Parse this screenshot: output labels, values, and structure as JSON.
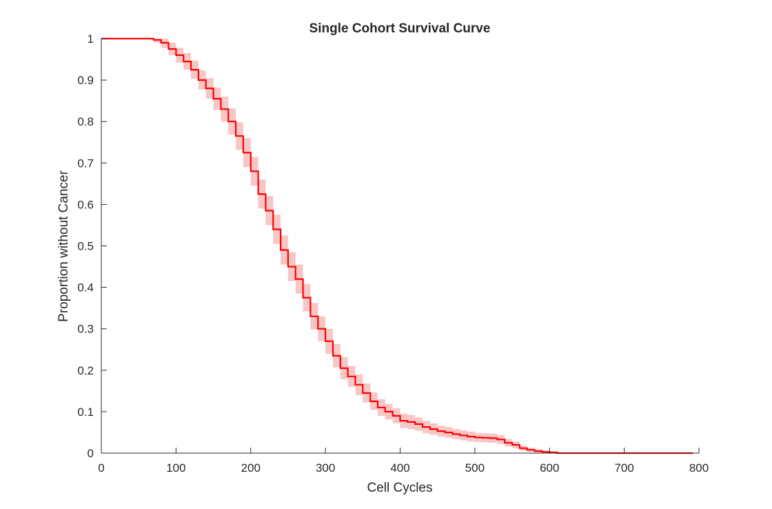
{
  "chart_data": {
    "type": "line",
    "title": "Single Cohort Survival Curve",
    "xlabel": "Cell Cycles",
    "ylabel": "Proportion without Cancer",
    "xlim": [
      0,
      800
    ],
    "ylim": [
      0,
      1
    ],
    "grid": false,
    "x_ticks": [
      "0",
      "100",
      "200",
      "300",
      "400",
      "500",
      "600",
      "700",
      "800"
    ],
    "y_ticks": [
      "0",
      "0.1",
      "0.2",
      "0.3",
      "0.4",
      "0.5",
      "0.6",
      "0.7",
      "0.8",
      "0.9",
      "1"
    ],
    "colors": {
      "line": "#ff0000",
      "band": "#f7c6c6",
      "axis": "#262626"
    },
    "series": [
      {
        "x": [
          0,
          40,
          70,
          80,
          90,
          100,
          110,
          120,
          130,
          140,
          150,
          160,
          170,
          180,
          190,
          200,
          210,
          220,
          230,
          240,
          250,
          260,
          270,
          280,
          290,
          300,
          310,
          320,
          330,
          340,
          350,
          360,
          370,
          380,
          390,
          400,
          410,
          420,
          430,
          440,
          450,
          460,
          470,
          480,
          490,
          500,
          510,
          520,
          530,
          540,
          550,
          560,
          570,
          580,
          590,
          600,
          610,
          620,
          700,
          792
        ],
        "values": [
          1.0,
          1.0,
          0.997,
          0.99,
          0.975,
          0.96,
          0.945,
          0.925,
          0.9,
          0.88,
          0.855,
          0.83,
          0.8,
          0.765,
          0.725,
          0.68,
          0.625,
          0.585,
          0.54,
          0.49,
          0.45,
          0.42,
          0.375,
          0.33,
          0.3,
          0.27,
          0.235,
          0.205,
          0.185,
          0.165,
          0.145,
          0.125,
          0.11,
          0.1,
          0.09,
          0.078,
          0.075,
          0.07,
          0.063,
          0.058,
          0.053,
          0.05,
          0.046,
          0.043,
          0.04,
          0.038,
          0.037,
          0.036,
          0.033,
          0.025,
          0.02,
          0.012,
          0.008,
          0.005,
          0.003,
          0.002,
          0.0,
          0.0,
          0.0,
          0.0
        ],
        "lower": [
          1.0,
          1.0,
          0.99,
          0.978,
          0.96,
          0.942,
          0.925,
          0.903,
          0.877,
          0.855,
          0.828,
          0.8,
          0.768,
          0.732,
          0.69,
          0.645,
          0.59,
          0.55,
          0.505,
          0.455,
          0.415,
          0.385,
          0.342,
          0.298,
          0.27,
          0.24,
          0.207,
          0.178,
          0.16,
          0.14,
          0.122,
          0.104,
          0.09,
          0.081,
          0.072,
          0.061,
          0.058,
          0.054,
          0.048,
          0.044,
          0.04,
          0.037,
          0.034,
          0.031,
          0.028,
          0.027,
          0.026,
          0.025,
          0.022,
          0.016,
          0.012,
          0.006,
          0.003,
          0.001,
          0.0,
          0.0,
          0.0,
          0.0,
          0.0,
          0.0
        ],
        "upper": [
          1.0,
          1.0,
          1.0,
          1.0,
          0.99,
          0.978,
          0.965,
          0.947,
          0.923,
          0.905,
          0.882,
          0.86,
          0.832,
          0.798,
          0.76,
          0.715,
          0.66,
          0.62,
          0.575,
          0.525,
          0.485,
          0.455,
          0.408,
          0.362,
          0.33,
          0.3,
          0.263,
          0.232,
          0.21,
          0.19,
          0.168,
          0.146,
          0.13,
          0.119,
          0.108,
          0.095,
          0.092,
          0.086,
          0.078,
          0.072,
          0.066,
          0.063,
          0.058,
          0.055,
          0.052,
          0.049,
          0.048,
          0.047,
          0.044,
          0.034,
          0.028,
          0.018,
          0.013,
          0.009,
          0.006,
          0.004,
          0.002,
          0.001,
          0.001,
          0.001
        ]
      }
    ]
  }
}
